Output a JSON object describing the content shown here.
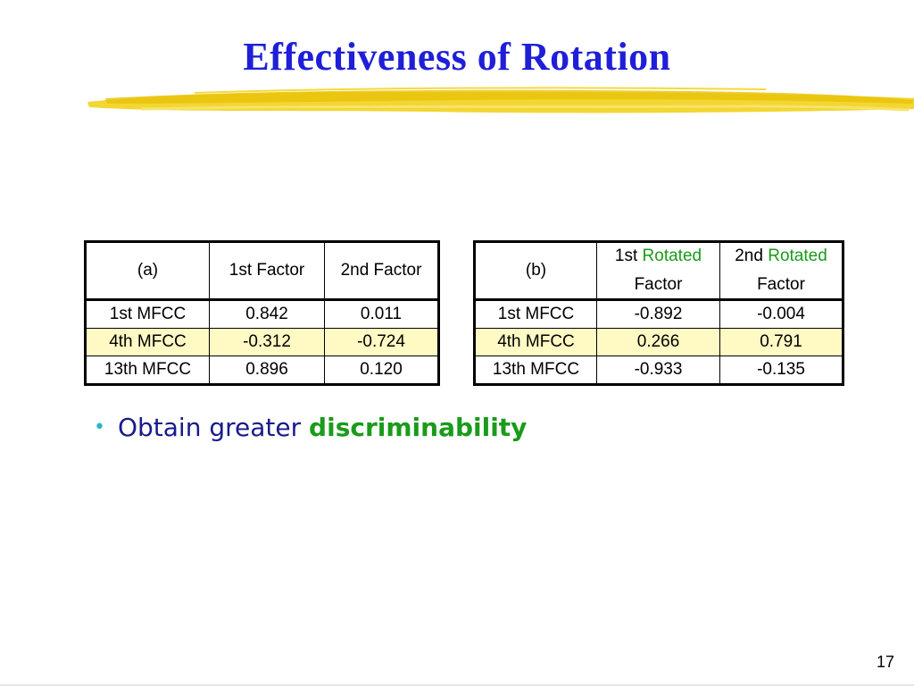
{
  "slide": {
    "title": "Effectiveness of Rotation",
    "page_number": "17"
  },
  "table_a": {
    "header": {
      "corner": "(a)",
      "col1": "1st Factor",
      "col2": "2nd Factor"
    },
    "rows": [
      {
        "label": "1st MFCC",
        "v1": "0.842",
        "v2": "0.011",
        "highlight": false
      },
      {
        "label": "4th MFCC",
        "v1": "-0.312",
        "v2": "-0.724",
        "highlight": true
      },
      {
        "label": "13th MFCC",
        "v1": "0.896",
        "v2": "0.120",
        "highlight": false
      }
    ]
  },
  "table_b": {
    "header": {
      "corner": "(b)",
      "col1_prefix": "1st",
      "col1_emph": "Rotated",
      "col1_suffix": "Factor",
      "col2_prefix": "2nd",
      "col2_emph": "Rotated",
      "col2_suffix": "Factor"
    },
    "rows": [
      {
        "label": "1st MFCC",
        "v1": "-0.892",
        "v2": "-0.004",
        "highlight": false
      },
      {
        "label": "4th MFCC",
        "v1": "0.266",
        "v2": "0.791",
        "highlight": true
      },
      {
        "label": "13th MFCC",
        "v1": "-0.933",
        "v2": "-0.135",
        "highlight": false
      }
    ]
  },
  "bullet": {
    "text": "Obtain greater",
    "emphasis": "discriminability"
  },
  "colors": {
    "title": "#1f1fd8",
    "emphasis_green": "#1a9b1a",
    "highlight_row": "#fff9c4",
    "underline_yellow": "#f2d21b",
    "bullet_dot": "#2bb5c8",
    "bullet_text": "#1a1a8c"
  }
}
